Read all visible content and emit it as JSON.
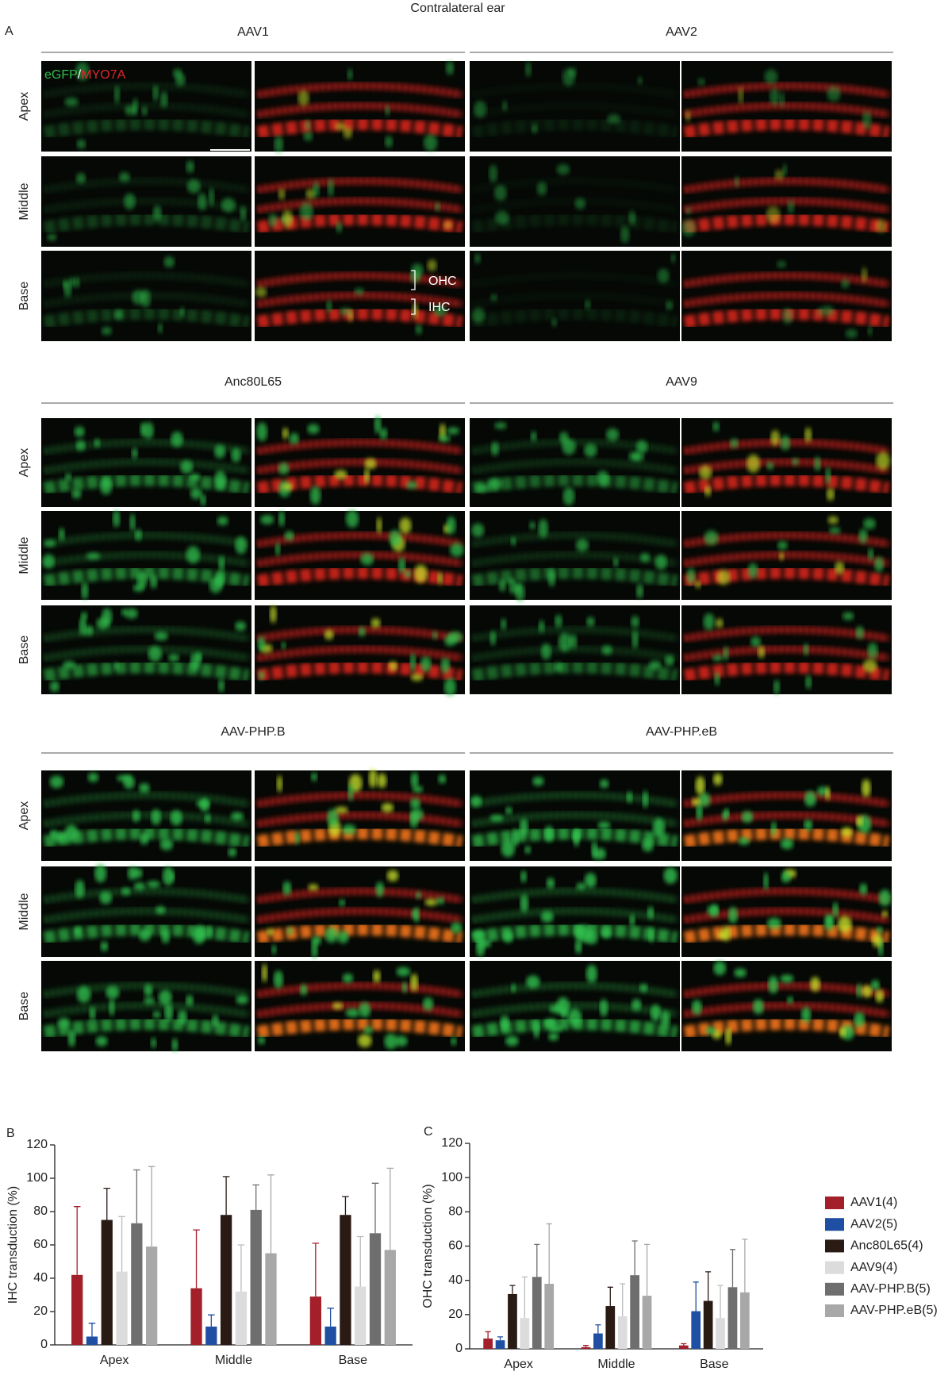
{
  "figure": {
    "title": "Contralateral ear",
    "panel_label": "A",
    "channel_labels": [
      "eGFP",
      "/",
      "MYO7A"
    ],
    "groups": [
      "AAV1",
      "AAV2",
      "Anc80L65",
      "AAV9",
      "AAV-PHP.B",
      "AAV-PHP.eB"
    ],
    "rows": [
      "Apex",
      "Middle",
      "Base"
    ],
    "annotations": [
      "OHC",
      "IHC"
    ]
  },
  "chart_data": [
    {
      "type": "bar",
      "panel_label": "B",
      "y_label": "IHC transduction (%)",
      "categories": [
        "Apex",
        "Middle",
        "Base"
      ],
      "ylim": [
        0,
        120
      ],
      "yticks": [
        0,
        20,
        40,
        60,
        80,
        100,
        120
      ],
      "series": [
        {
          "color": "#a31f2a",
          "values": [
            42,
            34,
            29
          ],
          "errors": [
            41,
            35,
            32
          ]
        },
        {
          "color": "#1f4fa3",
          "values": [
            5,
            11,
            11
          ],
          "errors": [
            8,
            7,
            11
          ]
        },
        {
          "color": "#2a1a14",
          "values": [
            75,
            78,
            78
          ],
          "errors": [
            19,
            23,
            11
          ]
        },
        {
          "color": "#dcdcdc",
          "values": [
            44,
            32,
            35
          ],
          "errors": [
            33,
            28,
            30
          ]
        },
        {
          "color": "#6e6e6e",
          "values": [
            73,
            81,
            67
          ],
          "errors": [
            32,
            15,
            30
          ]
        },
        {
          "color": "#a8a8a8",
          "values": [
            59,
            55,
            57
          ],
          "errors": [
            48,
            47,
            49
          ]
        }
      ]
    },
    {
      "type": "bar",
      "panel_label": "C",
      "y_label": "OHC transduction (%)",
      "categories": [
        "Apex",
        "Middle",
        "Base"
      ],
      "ylim": [
        0,
        120
      ],
      "yticks": [
        0,
        20,
        40,
        60,
        80,
        100,
        120
      ],
      "series": [
        {
          "name": "AAV1(4)",
          "color": "#a31f2a",
          "values": [
            6,
            1,
            2
          ],
          "errors": [
            4,
            1,
            1
          ]
        },
        {
          "name": "AAV2(5)",
          "color": "#1f4fa3",
          "values": [
            5,
            9,
            22
          ],
          "errors": [
            2,
            5,
            17
          ]
        },
        {
          "name": "Anc80L65(4)",
          "color": "#2a1a14",
          "values": [
            32,
            25,
            28
          ],
          "errors": [
            5,
            11,
            17
          ]
        },
        {
          "name": "AAV9(4)",
          "color": "#dcdcdc",
          "values": [
            18,
            19,
            18
          ],
          "errors": [
            24,
            19,
            19
          ]
        },
        {
          "name": "AAV-PHP.B(5)",
          "color": "#6e6e6e",
          "values": [
            42,
            43,
            36
          ],
          "errors": [
            19,
            20,
            22
          ]
        },
        {
          "name": "AAV-PHP.eB(5)",
          "color": "#a8a8a8",
          "values": [
            38,
            31,
            33
          ],
          "errors": [
            35,
            30,
            31
          ]
        }
      ]
    }
  ]
}
